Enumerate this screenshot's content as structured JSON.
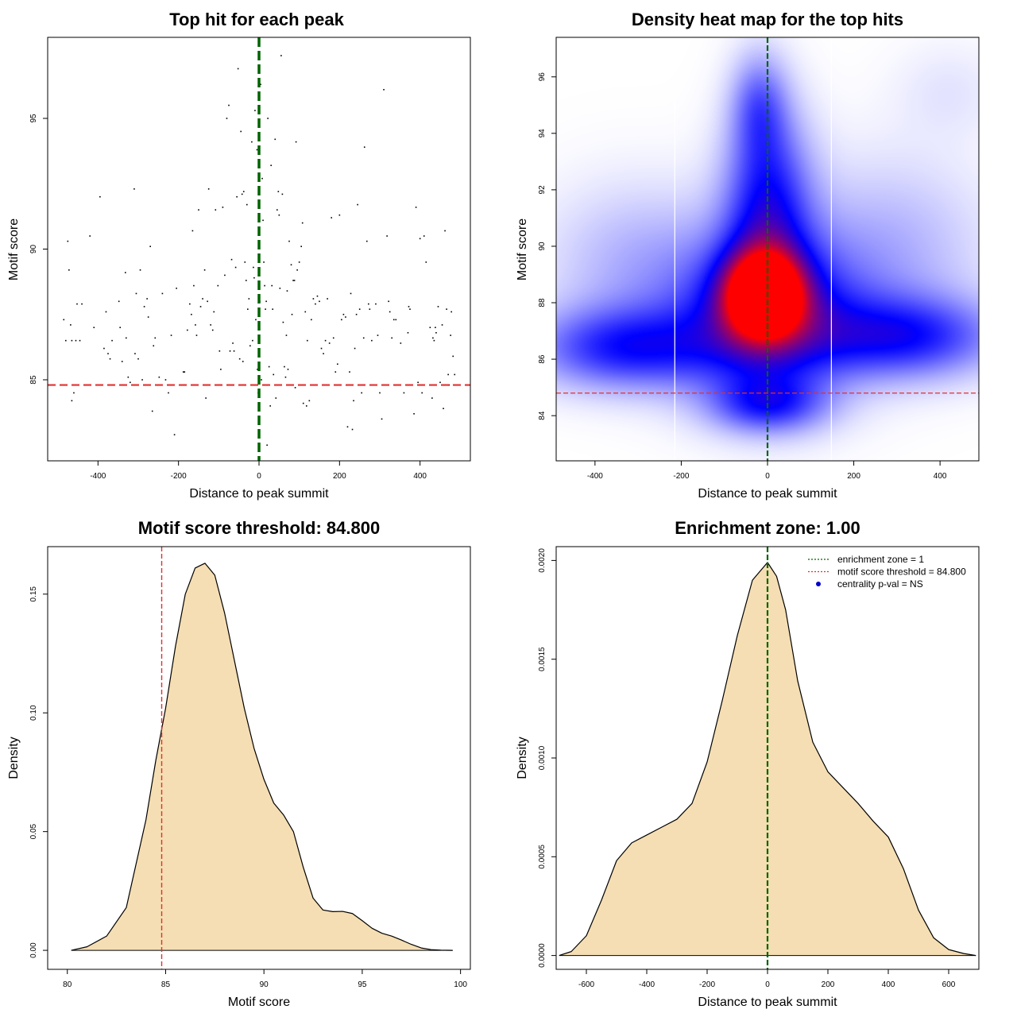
{
  "chart_data": [
    {
      "type": "scatter",
      "title": "Top hit for each peak",
      "xlabel": "Distance to peak summit",
      "ylabel": "Motif score",
      "xlim": [
        -525,
        525
      ],
      "ylim": [
        81.9,
        98.1
      ],
      "xticks": [
        -400,
        -200,
        0,
        200,
        400
      ],
      "yticks": [
        85,
        90,
        95
      ],
      "xtick_labels": [
        "-400",
        "-200",
        "0",
        "200",
        "400"
      ],
      "ytick_labels": [
        "85",
        "90",
        "95"
      ],
      "vline": {
        "x": 0,
        "color": "#006400"
      },
      "hline": {
        "y": 84.8,
        "color": "#e03030"
      },
      "points": [
        [
          -485,
          87.3
        ],
        [
          -480,
          86.5
        ],
        [
          -475,
          90.3
        ],
        [
          -472,
          89.2
        ],
        [
          -468,
          87.1
        ],
        [
          -465,
          86.5
        ],
        [
          -460,
          84.5
        ],
        [
          -465,
          84.2
        ],
        [
          -455,
          86.5
        ],
        [
          -452,
          87.9
        ],
        [
          -445,
          86.5
        ],
        [
          -440,
          87.9
        ],
        [
          -420,
          90.5
        ],
        [
          -410,
          87.0
        ],
        [
          -395,
          92.0
        ],
        [
          -385,
          86.2
        ],
        [
          -380,
          87.6
        ],
        [
          -375,
          86.0
        ],
        [
          -370,
          85.8
        ],
        [
          -365,
          86.5
        ],
        [
          -348,
          88.0
        ],
        [
          -345,
          87.0
        ],
        [
          -340,
          85.7
        ],
        [
          -332,
          89.1
        ],
        [
          -330,
          86.6
        ],
        [
          -325,
          85.1
        ],
        [
          -320,
          84.9
        ],
        [
          -310,
          92.3
        ],
        [
          -308,
          86.0
        ],
        [
          -305,
          88.3
        ],
        [
          -300,
          85.8
        ],
        [
          -295,
          89.2
        ],
        [
          -290,
          85.0
        ],
        [
          -285,
          87.8
        ],
        [
          -278,
          88.1
        ],
        [
          -275,
          87.4
        ],
        [
          -270,
          90.1
        ],
        [
          -265,
          83.8
        ],
        [
          -262,
          86.3
        ],
        [
          -258,
          86.6
        ],
        [
          -248,
          85.1
        ],
        [
          -240,
          88.3
        ],
        [
          -232,
          85.0
        ],
        [
          -225,
          84.5
        ],
        [
          -218,
          86.7
        ],
        [
          -210,
          82.9
        ],
        [
          -205,
          88.5
        ],
        [
          -195,
          84.8
        ],
        [
          -188,
          85.3
        ],
        [
          -185,
          85.3
        ],
        [
          -178,
          86.9
        ],
        [
          -172,
          87.9
        ],
        [
          -168,
          87.5
        ],
        [
          -165,
          90.7
        ],
        [
          -162,
          88.6
        ],
        [
          -158,
          87.1
        ],
        [
          -155,
          86.7
        ],
        [
          -150,
          91.5
        ],
        [
          -145,
          87.8
        ],
        [
          -140,
          88.1
        ],
        [
          -135,
          89.2
        ],
        [
          -132,
          84.3
        ],
        [
          -128,
          88.0
        ],
        [
          -125,
          92.3
        ],
        [
          -120,
          87.1
        ],
        [
          -115,
          86.9
        ],
        [
          -112,
          87.6
        ],
        [
          -108,
          91.5
        ],
        [
          -102,
          88.6
        ],
        [
          -98,
          86.1
        ],
        [
          -95,
          85.4
        ],
        [
          -90,
          91.6
        ],
        [
          -85,
          89.0
        ],
        [
          -80,
          95.0
        ],
        [
          -75,
          95.5
        ],
        [
          -72,
          86.1
        ],
        [
          -68,
          89.6
        ],
        [
          -65,
          86.4
        ],
        [
          -62,
          86.1
        ],
        [
          -58,
          89.3
        ],
        [
          -55,
          92.0
        ],
        [
          -52,
          96.9
        ],
        [
          -48,
          85.8
        ],
        [
          -45,
          94.5
        ],
        [
          -42,
          92.1
        ],
        [
          -40,
          85.7
        ],
        [
          -38,
          92.2
        ],
        [
          -35,
          89.5
        ],
        [
          -32,
          88.8
        ],
        [
          -30,
          91.7
        ],
        [
          -28,
          87.7
        ],
        [
          -25,
          88.1
        ],
        [
          -22,
          86.3
        ],
        [
          -18,
          94.1
        ],
        [
          -16,
          86.5
        ],
        [
          -14,
          89.3
        ],
        [
          -12,
          88.9
        ],
        [
          -10,
          95.3
        ],
        [
          -8,
          87.3
        ],
        [
          -5,
          93.8
        ],
        [
          -4,
          85.4
        ],
        [
          -2,
          84.5
        ],
        [
          2,
          88.0
        ],
        [
          4,
          96.3
        ],
        [
          6,
          85.0
        ],
        [
          8,
          92.7
        ],
        [
          10,
          91.1
        ],
        [
          12,
          89.5
        ],
        [
          14,
          88.6
        ],
        [
          16,
          87.7
        ],
        [
          18,
          88.0
        ],
        [
          20,
          82.5
        ],
        [
          22,
          95.0
        ],
        [
          25,
          85.5
        ],
        [
          28,
          84.0
        ],
        [
          30,
          93.2
        ],
        [
          32,
          88.6
        ],
        [
          34,
          87.7
        ],
        [
          36,
          85.2
        ],
        [
          40,
          94.2
        ],
        [
          42,
          84.3
        ],
        [
          45,
          91.5
        ],
        [
          48,
          92.2
        ],
        [
          50,
          91.3
        ],
        [
          52,
          88.5
        ],
        [
          55,
          97.4
        ],
        [
          58,
          92.1
        ],
        [
          60,
          87.2
        ],
        [
          63,
          85.5
        ],
        [
          66,
          85.1
        ],
        [
          68,
          86.7
        ],
        [
          70,
          88.4
        ],
        [
          72,
          85.4
        ],
        [
          75,
          90.3
        ],
        [
          80,
          89.4
        ],
        [
          82,
          87.5
        ],
        [
          85,
          88.8
        ],
        [
          88,
          88.8
        ],
        [
          90,
          84.7
        ],
        [
          92,
          94.1
        ],
        [
          95,
          89.2
        ],
        [
          100,
          89.5
        ],
        [
          105,
          90.1
        ],
        [
          108,
          91.0
        ],
        [
          110,
          84.1
        ],
        [
          115,
          87.6
        ],
        [
          118,
          84.0
        ],
        [
          120,
          86.5
        ],
        [
          125,
          84.2
        ],
        [
          130,
          87.3
        ],
        [
          135,
          88.1
        ],
        [
          140,
          87.9
        ],
        [
          145,
          88.2
        ],
        [
          150,
          88.0
        ],
        [
          155,
          86.2
        ],
        [
          160,
          86.0
        ],
        [
          165,
          86.5
        ],
        [
          170,
          88.1
        ],
        [
          175,
          86.4
        ],
        [
          180,
          91.2
        ],
        [
          185,
          86.6
        ],
        [
          190,
          85.3
        ],
        [
          195,
          85.6
        ],
        [
          200,
          91.3
        ],
        [
          205,
          87.3
        ],
        [
          210,
          87.5
        ],
        [
          215,
          87.4
        ],
        [
          220,
          83.2
        ],
        [
          225,
          85.3
        ],
        [
          228,
          88.3
        ],
        [
          232,
          83.1
        ],
        [
          235,
          84.2
        ],
        [
          238,
          86.2
        ],
        [
          242,
          87.5
        ],
        [
          245,
          91.7
        ],
        [
          250,
          87.7
        ],
        [
          255,
          84.5
        ],
        [
          260,
          86.6
        ],
        [
          262,
          93.9
        ],
        [
          268,
          90.3
        ],
        [
          272,
          87.9
        ],
        [
          275,
          87.7
        ],
        [
          280,
          86.5
        ],
        [
          290,
          87.9
        ],
        [
          295,
          86.7
        ],
        [
          300,
          84.5
        ],
        [
          305,
          83.5
        ],
        [
          310,
          96.1
        ],
        [
          318,
          90.5
        ],
        [
          322,
          88.0
        ],
        [
          325,
          87.6
        ],
        [
          330,
          86.6
        ],
        [
          335,
          87.3
        ],
        [
          340,
          87.3
        ],
        [
          352,
          86.4
        ],
        [
          360,
          84.5
        ],
        [
          370,
          86.8
        ],
        [
          372,
          87.8
        ],
        [
          375,
          87.7
        ],
        [
          385,
          83.7
        ],
        [
          390,
          91.6
        ],
        [
          395,
          84.9
        ],
        [
          400,
          90.4
        ],
        [
          405,
          84.5
        ],
        [
          410,
          90.5
        ],
        [
          415,
          89.5
        ],
        [
          425,
          87.0
        ],
        [
          430,
          84.3
        ],
        [
          432,
          86.6
        ],
        [
          435,
          86.5
        ],
        [
          438,
          87.0
        ],
        [
          440,
          86.8
        ],
        [
          445,
          87.8
        ],
        [
          450,
          84.9
        ],
        [
          455,
          87.1
        ],
        [
          458,
          83.9
        ],
        [
          462,
          90.7
        ],
        [
          466,
          87.7
        ],
        [
          470,
          85.2
        ],
        [
          472,
          84.8
        ],
        [
          476,
          86.7
        ],
        [
          478,
          87.6
        ],
        [
          482,
          85.9
        ],
        [
          486,
          85.2
        ]
      ]
    },
    {
      "type": "heatmap",
      "title": "Density heat map for the top hits",
      "xlabel": "Distance to peak summit",
      "ylabel": "Motif score",
      "xlim": [
        -490,
        490
      ],
      "ylim": [
        82.4,
        97.4
      ],
      "xticks": [
        -400,
        -200,
        0,
        200,
        400
      ],
      "yticks": [
        84,
        86,
        88,
        90,
        92,
        94,
        96
      ],
      "xtick_labels": [
        "-400",
        "-200",
        "0",
        "200",
        "400"
      ],
      "ytick_labels": [
        "84",
        "86",
        "88",
        "90",
        "92",
        "94",
        "96"
      ],
      "vline": {
        "x": 0,
        "color": "#006400"
      },
      "hline": {
        "y": 84.8,
        "color": "#e03030"
      },
      "white_vlines": [
        -215,
        148
      ],
      "kernels": [
        {
          "x": -10,
          "y": 88.3,
          "sx": 60,
          "sy": 1.0,
          "w": 1.0
        },
        {
          "x": 0,
          "y": 87.5,
          "sx": 140,
          "sy": 1.9,
          "w": 0.6
        },
        {
          "x": 0,
          "y": 91.5,
          "sx": 70,
          "sy": 2.3,
          "w": 0.45
        },
        {
          "x": -20,
          "y": 95.0,
          "sx": 45,
          "sy": 1.3,
          "w": 0.25
        },
        {
          "x": -330,
          "y": 86.4,
          "sx": 150,
          "sy": 1.0,
          "w": 0.42
        },
        {
          "x": 320,
          "y": 86.8,
          "sx": 150,
          "sy": 1.0,
          "w": 0.42
        },
        {
          "x": 0,
          "y": 84.4,
          "sx": 90,
          "sy": 0.7,
          "w": 0.35
        },
        {
          "x": -300,
          "y": 89.3,
          "sx": 150,
          "sy": 2.0,
          "w": 0.15
        },
        {
          "x": 280,
          "y": 89.8,
          "sx": 160,
          "sy": 2.3,
          "w": 0.15
        },
        {
          "x": 420,
          "y": 95.5,
          "sx": 90,
          "sy": 1.2,
          "w": 0.05
        }
      ]
    },
    {
      "type": "area",
      "title": "Motif score threshold: 84.800",
      "xlabel": "Motif score",
      "ylabel": "Density",
      "xlim": [
        79,
        100.5
      ],
      "ylim": [
        -0.008,
        0.17
      ],
      "xticks": [
        80,
        85,
        90,
        95,
        100
      ],
      "yticks": [
        0,
        0.05,
        0.1,
        0.15
      ],
      "xtick_labels": [
        "80",
        "85",
        "90",
        "95",
        "100"
      ],
      "ytick_labels": [
        "0.00",
        "0.05",
        "0.10",
        "0.15"
      ],
      "fill": "#f5deb3",
      "vline": {
        "x": 84.8,
        "color": "#e03030"
      },
      "x": [
        80.2,
        81,
        82,
        83,
        84,
        84.5,
        85,
        85.5,
        86,
        86.5,
        87,
        87.5,
        88,
        88.5,
        89,
        89.5,
        90,
        90.5,
        91,
        91.5,
        92,
        92.5,
        93,
        93.5,
        94,
        94.5,
        95,
        95.5,
        96,
        96.5,
        97,
        97.5,
        98,
        98.5,
        99,
        99.6
      ],
      "y": [
        0.0,
        0.0015,
        0.006,
        0.018,
        0.055,
        0.08,
        0.102,
        0.128,
        0.15,
        0.161,
        0.163,
        0.158,
        0.142,
        0.122,
        0.102,
        0.085,
        0.072,
        0.062,
        0.057,
        0.05,
        0.035,
        0.022,
        0.017,
        0.0163,
        0.0164,
        0.0155,
        0.0125,
        0.0093,
        0.0072,
        0.006,
        0.0043,
        0.0025,
        0.001,
        0.0003,
        0.0001,
        0.0
      ]
    },
    {
      "type": "area",
      "title": "Enrichment zone: 1.00",
      "xlabel": "Distance to peak summit",
      "ylabel": "Density",
      "xlim": [
        -700,
        700
      ],
      "ylim": [
        -7e-05,
        0.00207
      ],
      "xticks": [
        -600,
        -400,
        -200,
        0,
        200,
        400,
        600
      ],
      "yticks": [
        0,
        0.0005,
        0.001,
        0.0015,
        0.002
      ],
      "xtick_labels": [
        "-600",
        "-400",
        "-200",
        "0",
        "200",
        "400",
        "600"
      ],
      "ytick_labels": [
        "0.0000",
        "0.0005",
        "0.0010",
        "0.0015",
        "0.0020"
      ],
      "fill": "#f5deb3",
      "vline": {
        "x": 0,
        "color": "#006400"
      },
      "x": [
        -690,
        -650,
        -600,
        -550,
        -500,
        -450,
        -400,
        -350,
        -300,
        -250,
        -200,
        -150,
        -100,
        -50,
        0,
        30,
        60,
        100,
        150,
        200,
        250,
        300,
        350,
        400,
        450,
        500,
        550,
        600,
        650,
        690
      ],
      "y": [
        0.0,
        2e-05,
        0.0001,
        0.00028,
        0.00048,
        0.00057,
        0.00061,
        0.00065,
        0.00069,
        0.00077,
        0.00098,
        0.00129,
        0.00162,
        0.0019,
        0.00199,
        0.00192,
        0.00175,
        0.00139,
        0.00108,
        0.00093,
        0.00085,
        0.00077,
        0.00068,
        0.0006,
        0.00044,
        0.00023,
        9e-05,
        3e-05,
        1e-05,
        0.0
      ],
      "legend": [
        {
          "label": "enrichment zone = 1",
          "kind": "dotted",
          "color": "#006400"
        },
        {
          "label": "motif score threshold = 84.800",
          "kind": "dotted",
          "color": "#e03030"
        },
        {
          "label": "centrality p-val = NS",
          "kind": "dot",
          "color": "#0000cc"
        }
      ]
    }
  ]
}
